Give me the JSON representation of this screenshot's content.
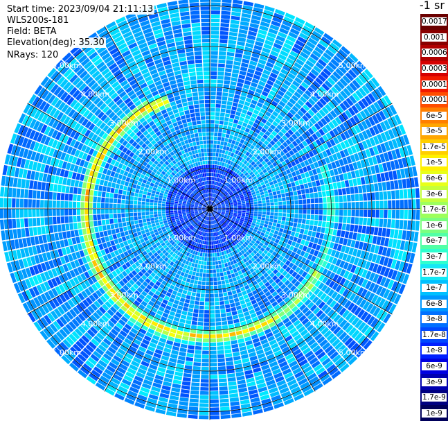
{
  "info": {
    "start_time": "Start time: 2023/09/04 21:11:13",
    "instrument": "WLS200s-181",
    "field": "Field: BETA",
    "elevation": "Elevation(deg): 35.30",
    "nrays": "NRays: 120"
  },
  "colorbar": {
    "title": "-1 sr",
    "labels": [
      "0.0017",
      "0.001",
      "0.0006",
      "0.0003",
      "0.00017",
      "0.0001",
      "6e-5",
      "3e-5",
      "1.7e-5",
      "1e-5",
      "6e-6",
      "3e-6",
      "1.7e-6",
      "1e-6",
      "6e-7",
      "3e-7",
      "1.7e-7",
      "1e-7",
      "6e-8",
      "3e-8",
      "1.7e-8",
      "1e-8",
      "6e-9",
      "3e-9",
      "1.7e-9",
      "1e-9"
    ],
    "colors": [
      "#6b0000",
      "#8a0000",
      "#b00000",
      "#d50000",
      "#f21a00",
      "#ff4d00",
      "#ff7f00",
      "#ffa600",
      "#ffcf00",
      "#fff000",
      "#e8ff1a",
      "#c4ff3b",
      "#9dff5c",
      "#7aff80",
      "#52ffa6",
      "#2fffcf",
      "#13e8f5",
      "#00c0ff",
      "#0098ff",
      "#0070ff",
      "#0048ff",
      "#0020ff",
      "#0000e0",
      "#0000b0",
      "#000080",
      "#00005a"
    ]
  },
  "chart_data": {
    "type": "heatmap",
    "projection": "polar (PPI lidar scan)",
    "title": "",
    "variable": "BETA",
    "units": "-1 sr",
    "n_rays": 120,
    "azimuth_deg": [
      0,
      360
    ],
    "range_rings_km": [
      1.0,
      2.0,
      3.0,
      4.0,
      5.0
    ],
    "range_labels": [
      "1.00km",
      "2.00km",
      "3.00km",
      "4.00km",
      "5.00km"
    ],
    "max_range_km": 5.2,
    "colorscale": "logarithmic",
    "color_range": [
      1e-09,
      0.0017
    ],
    "features": [
      {
        "description": "high backscatter ring",
        "range_km": 3.0,
        "azimuth_range_deg": [
          180,
          300
        ],
        "beta_approx": [
          1e-05,
          0.0001
        ]
      },
      {
        "description": "background",
        "beta_approx": [
          1e-08,
          1e-07
        ]
      }
    ],
    "grid": true
  }
}
